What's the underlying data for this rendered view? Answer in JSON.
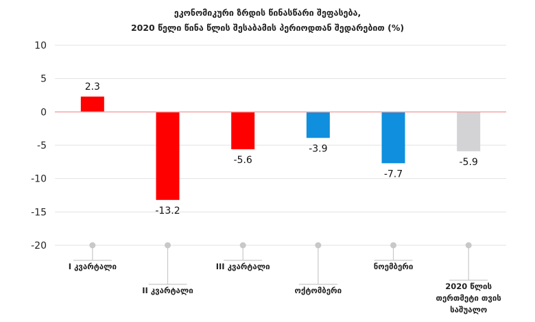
{
  "title_lines": [
    "ეკონომიკური ზრდის წინასწარი შეფასება,",
    "2020 წელი წინა წლის შესაბამის პერიოდთან შედარებით (%)"
  ],
  "chart_data": {
    "type": "bar",
    "categories": [
      [
        "I კვარტალი"
      ],
      [
        "II კვარტალი"
      ],
      [
        "III კვარტალი"
      ],
      [
        "ოქტომბერი"
      ],
      [
        "ნოემბერი"
      ],
      [
        "2020 წლის",
        "თერთმეტი თვის",
        "საშუალო"
      ]
    ],
    "values": [
      2.3,
      -13.2,
      -5.6,
      -3.9,
      -7.7,
      -5.9
    ],
    "value_labels": [
      "2.3",
      "-13.2",
      "-5.6",
      "-3.9",
      "-7.7",
      "-5.9"
    ],
    "bar_colors": [
      "#ff0000",
      "#ff0000",
      "#ff0000",
      "#0f8fdd",
      "#0f8fdd",
      "#d3d3d5"
    ],
    "ylim": [
      -20,
      10
    ],
    "yticks": [
      10,
      5,
      0,
      -5,
      -10,
      -15,
      -20
    ],
    "grid": true,
    "zero_line_color": "#f4a3a3",
    "legend": "none"
  }
}
